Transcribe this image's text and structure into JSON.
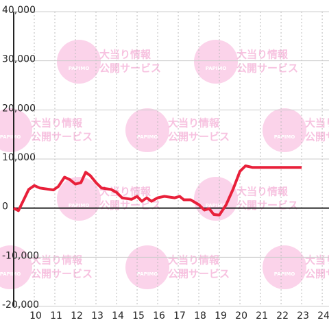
{
  "chart_data": {
    "type": "line",
    "watermark": {
      "logo": "PAPIMO",
      "line1": "大当り情報",
      "line2": "公開サービス"
    },
    "x": [
      9.0,
      9.23,
      9.5,
      9.73,
      10.0,
      10.27,
      10.93,
      11.17,
      11.47,
      11.73,
      12.0,
      12.27,
      12.5,
      12.73,
      13.0,
      13.27,
      13.73,
      14.0,
      14.27,
      14.73,
      15.0,
      15.23,
      15.47,
      15.7,
      16.0,
      16.33,
      16.83,
      17.07,
      17.27,
      17.6,
      18.0,
      18.27,
      18.5,
      18.73,
      19.0,
      19.33,
      19.67,
      20.0,
      20.27,
      20.6,
      23.0
    ],
    "series": [
      {
        "color": "#e8203a",
        "values": [
          0,
          -500,
          1800,
          3800,
          4600,
          4100,
          3700,
          4400,
          6300,
          5800,
          4900,
          5200,
          7300,
          6600,
          5200,
          4100,
          3800,
          3200,
          2100,
          1800,
          2400,
          1400,
          2100,
          1400,
          2100,
          2400,
          2100,
          2400,
          1700,
          1700,
          700,
          -400,
          -100,
          -1300,
          -1400,
          700,
          3900,
          7500,
          8600,
          8300,
          8300
        ]
      }
    ],
    "xlim": [
      9,
      24.33
    ],
    "xticks": [
      10,
      11,
      12,
      13,
      14,
      15,
      16,
      17,
      18,
      19,
      20,
      21,
      22,
      23,
      24
    ],
    "ylim": [
      -20000,
      40000
    ],
    "yticks": [
      {
        "value": -20000,
        "label": "-20,000"
      },
      {
        "value": -10000,
        "label": "-10,000"
      },
      0,
      {
        "value": 10000,
        "label": "10,000"
      },
      {
        "value": 20000,
        "label": "20,000"
      },
      {
        "value": 30000,
        "label": "30,000"
      },
      {
        "value": 40000,
        "label": "40,000"
      }
    ],
    "grid": true
  }
}
